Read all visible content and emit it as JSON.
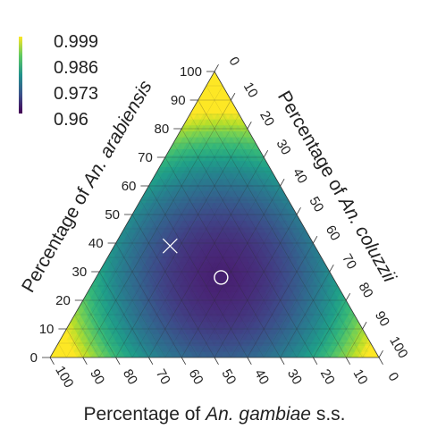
{
  "chart_data": {
    "type": "heatmap",
    "subtype": "ternary",
    "legend": {
      "placement": "top-left",
      "colorscale": "viridis",
      "labels": [
        "0.999",
        "0.986",
        "0.973",
        "0.96"
      ],
      "range": [
        0.956,
        1.0
      ]
    },
    "axes": {
      "left": {
        "title_prefix": "Percentage of ",
        "title_species": "An. arabiensis",
        "ticks": [
          "0",
          "10",
          "20",
          "30",
          "40",
          "50",
          "60",
          "70",
          "80",
          "90",
          "100"
        ]
      },
      "right": {
        "title_prefix": "Percentage of ",
        "title_species": "An. coluzzii",
        "ticks": [
          "0",
          "10",
          "20",
          "30",
          "40",
          "50",
          "60",
          "70",
          "80",
          "90",
          "100"
        ]
      },
      "bottom": {
        "title_prefix": "Percentage of ",
        "title_species": "An. gambiae",
        "title_suffix": " s.s.",
        "ticks": [
          "100",
          "90",
          "80",
          "70",
          "60",
          "50",
          "40",
          "30",
          "20",
          "10",
          "0"
        ]
      }
    },
    "grid": true,
    "minimum_estimate": {
      "arabiensis": 28,
      "coluzzii": 38,
      "gambiae": 34,
      "marker": "circle"
    },
    "reference_point": {
      "arabiensis": 39,
      "coluzzii": 17,
      "gambiae": 44,
      "marker": "x"
    },
    "surface": {
      "description": "quadratic bowl in composition space, minimum 0.96 near the open circle, approaching 1 at the vertices",
      "min_value": 0.96,
      "max_value": 0.999
    },
    "colors": {
      "viridis": [
        "#440154",
        "#482878",
        "#3e4989",
        "#31688e",
        "#26828e",
        "#1f9e89",
        "#35b779",
        "#6ece58",
        "#b5de2b",
        "#fde725"
      ],
      "marker": "#ffffff",
      "grid": "#2b2b2b",
      "text": "#222222"
    }
  }
}
